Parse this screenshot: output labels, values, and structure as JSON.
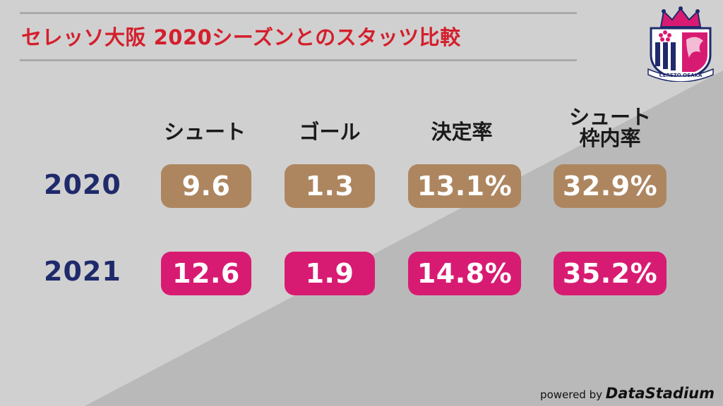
{
  "title": "セレッソ大阪 2020シーズンとのスタッツ比較",
  "colors": {
    "title": "#d41f2c",
    "year_label": "#1f2a6b",
    "pill_2020": "#ad8660",
    "pill_2021": "#d81b72",
    "background_light": "#d0d0d0",
    "background_dark": "#b9b9b9"
  },
  "logo": {
    "icon": "cerezo-osaka-crest",
    "text": "CEREZO OSAKA"
  },
  "chart_data": {
    "type": "table",
    "columns": [
      {
        "label": "シュート",
        "sub": ""
      },
      {
        "label": "ゴール",
        "sub": ""
      },
      {
        "label": "決定率",
        "sub": ""
      },
      {
        "label": "シュート",
        "sub": "枠内率"
      }
    ],
    "rows": [
      {
        "year": "2020",
        "values": [
          "9.6",
          "1.3",
          "13.1%",
          "32.9%"
        ]
      },
      {
        "year": "2021",
        "values": [
          "12.6",
          "1.9",
          "14.8%",
          "35.2%"
        ]
      }
    ]
  },
  "credit": {
    "prefix": "powered by",
    "brand": "DataStadium"
  }
}
